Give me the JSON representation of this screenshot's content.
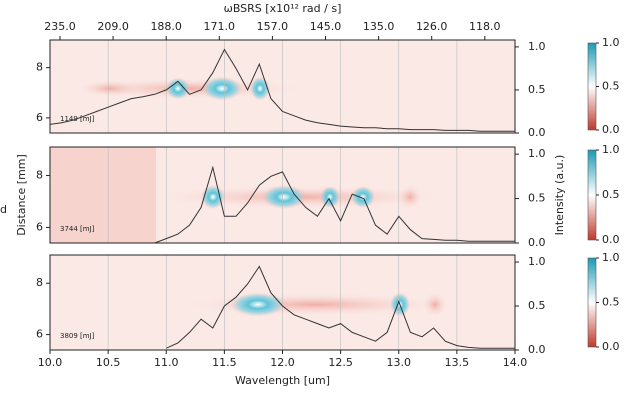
{
  "panel_letter": "d",
  "chart_data": [
    {
      "type": "line",
      "annotation": "1149 [mJ]",
      "top_axis": {
        "label": "ωBSRS [x10¹² rad / s]",
        "ticks": [
          {
            "value": 235,
            "label": "235.0"
          },
          {
            "value": 209,
            "label": "209.0"
          },
          {
            "value": 188,
            "label": "188.0"
          },
          {
            "value": 171,
            "label": "171.0"
          },
          {
            "value": 157,
            "label": "157.0"
          },
          {
            "value": 145,
            "label": "145.0"
          },
          {
            "value": 135,
            "label": "135.0"
          },
          {
            "value": 126,
            "label": "126.0"
          },
          {
            "value": 118,
            "label": "118.0"
          }
        ]
      },
      "x": [
        10.0,
        10.1,
        10.2,
        10.3,
        10.4,
        10.5,
        10.6,
        10.7,
        10.8,
        10.9,
        11.0,
        11.1,
        11.2,
        11.3,
        11.4,
        11.5,
        11.6,
        11.7,
        11.8,
        11.9,
        12.0,
        12.1,
        12.2,
        12.3,
        12.4,
        12.5,
        12.6,
        12.7,
        12.8,
        12.9,
        13.0,
        13.1,
        13.2,
        13.3,
        13.4,
        13.5,
        13.6,
        13.7,
        13.8,
        13.9,
        14.0
      ],
      "series": [
        {
          "color": "#333333",
          "axis": "y2",
          "values": [
            0.1,
            0.12,
            0.15,
            0.2,
            0.25,
            0.3,
            0.35,
            0.4,
            0.42,
            0.45,
            0.5,
            0.6,
            0.45,
            0.5,
            0.7,
            0.97,
            0.75,
            0.5,
            0.8,
            0.4,
            0.25,
            0.2,
            0.15,
            0.12,
            0.1,
            0.08,
            0.07,
            0.06,
            0.06,
            0.05,
            0.05,
            0.04,
            0.04,
            0.04,
            0.03,
            0.03,
            0.03,
            0.02,
            0.02,
            0.02,
            0.02
          ]
        }
      ],
      "xlim": [
        10,
        14
      ],
      "ylim": [
        5.4,
        9.1
      ],
      "yticks": [
        6,
        8
      ],
      "y2lim": [
        0,
        1.08
      ],
      "y2ticks": [
        {
          "value": 0,
          "label": "0.0"
        },
        {
          "value": 0.5,
          "label": "0.5"
        },
        {
          "value": 1,
          "label": "1.0"
        }
      ],
      "colorbar_ticks": [
        {
          "value": 0,
          "label": "0.0"
        },
        {
          "value": 0.5,
          "label": "0.5"
        },
        {
          "value": 1,
          "label": "1.0"
        }
      ]
    },
    {
      "type": "line",
      "annotation": "3744 [mJ]",
      "ylabel": "Distance [mm]",
      "y2label": "Intensity (a.u.)",
      "x": [
        10.0,
        10.1,
        10.2,
        10.3,
        10.4,
        10.5,
        10.6,
        10.7,
        10.8,
        10.9,
        11.0,
        11.1,
        11.2,
        11.3,
        11.4,
        11.5,
        11.6,
        11.7,
        11.8,
        11.9,
        12.0,
        12.1,
        12.2,
        12.3,
        12.4,
        12.5,
        12.6,
        12.7,
        12.8,
        12.9,
        13.0,
        13.1,
        13.2,
        13.3,
        13.4,
        13.5,
        13.6,
        13.7,
        13.8,
        13.9,
        14.0
      ],
      "series": [
        {
          "color": "#333333",
          "axis": "y2",
          "values": [
            null,
            null,
            null,
            null,
            null,
            null,
            null,
            null,
            null,
            0.0,
            0.05,
            0.1,
            0.2,
            0.4,
            0.85,
            0.3,
            0.3,
            0.45,
            0.65,
            0.75,
            0.8,
            0.55,
            0.4,
            0.3,
            0.5,
            0.25,
            0.55,
            0.5,
            0.2,
            0.1,
            0.3,
            0.15,
            0.05,
            0.04,
            0.03,
            0.03,
            0.02,
            0.02,
            0.02,
            0.02,
            0.02
          ]
        }
      ],
      "xlim": [
        10,
        14
      ],
      "ylim": [
        5.4,
        9.1
      ],
      "yticks": [
        6,
        8
      ],
      "y2lim": [
        0,
        1.08
      ],
      "y2ticks": [
        {
          "value": 0,
          "label": "0.0"
        },
        {
          "value": 0.5,
          "label": "0.5"
        },
        {
          "value": 1,
          "label": "1.0"
        }
      ],
      "colorbar_ticks": [
        {
          "value": 0,
          "label": "0.0"
        },
        {
          "value": 0.5,
          "label": "0.5"
        },
        {
          "value": 1,
          "label": "1.0"
        }
      ]
    },
    {
      "type": "line",
      "annotation": "3809 [mJ]",
      "xlabel": "Wavelength [um]",
      "x": [
        10.0,
        10.1,
        10.2,
        10.3,
        10.4,
        10.5,
        10.6,
        10.7,
        10.8,
        10.9,
        11.0,
        11.1,
        11.2,
        11.3,
        11.4,
        11.5,
        11.6,
        11.7,
        11.8,
        11.9,
        12.0,
        12.1,
        12.2,
        12.3,
        12.4,
        12.5,
        12.6,
        12.7,
        12.8,
        12.9,
        13.0,
        13.1,
        13.2,
        13.3,
        13.4,
        13.5,
        13.6,
        13.7,
        13.8,
        13.9,
        14.0
      ],
      "series": [
        {
          "color": "#333333",
          "axis": "y2",
          "values": [
            null,
            null,
            null,
            null,
            null,
            null,
            null,
            null,
            null,
            null,
            0.02,
            0.08,
            0.2,
            0.35,
            0.25,
            0.5,
            0.6,
            0.75,
            0.95,
            0.65,
            0.5,
            0.4,
            0.35,
            0.3,
            0.25,
            0.3,
            0.2,
            0.15,
            0.1,
            0.2,
            0.55,
            0.2,
            0.15,
            0.25,
            0.1,
            0.05,
            0.03,
            0.02,
            0.02,
            0.02,
            0.02
          ]
        }
      ],
      "xlim": [
        10,
        14
      ],
      "ylim": [
        5.4,
        9.1
      ],
      "yticks": [
        6,
        8
      ],
      "xticks": [
        {
          "value": 10,
          "label": "10.0"
        },
        {
          "value": 10.5,
          "label": "10.5"
        },
        {
          "value": 11,
          "label": "11.0"
        },
        {
          "value": 11.5,
          "label": "11.5"
        },
        {
          "value": 12,
          "label": "12.0"
        },
        {
          "value": 12.5,
          "label": "12.5"
        },
        {
          "value": 13,
          "label": "13.0"
        },
        {
          "value": 13.5,
          "label": "13.5"
        },
        {
          "value": 14,
          "label": "14.0"
        }
      ],
      "y2lim": [
        0,
        1.08
      ],
      "y2ticks": [
        {
          "value": 0,
          "label": "0.0"
        },
        {
          "value": 0.5,
          "label": "0.5"
        },
        {
          "value": 1,
          "label": "1.0"
        }
      ],
      "colorbar_ticks": [
        {
          "value": 0,
          "label": "0.0"
        },
        {
          "value": 0.5,
          "label": "0.5"
        },
        {
          "value": 1,
          "label": "1.0"
        }
      ]
    }
  ]
}
